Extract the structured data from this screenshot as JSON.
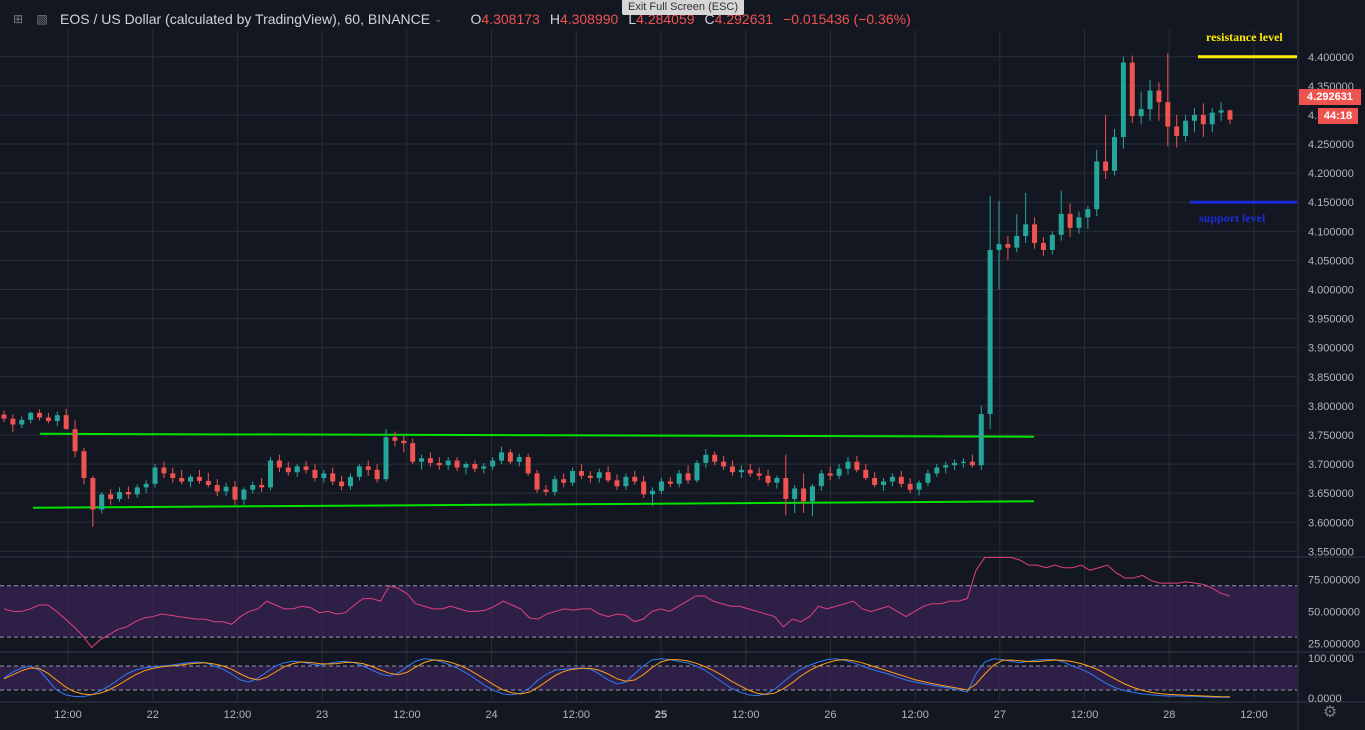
{
  "header": {
    "symbol_title": "EOS / US Dollar (calculated by TradingView), 60, BINANCE",
    "open_label": "O",
    "open_value": "4.308173",
    "high_label": "H",
    "high_value": "4.308990",
    "low_label": "L",
    "low_value": "4.284059",
    "close_label": "C",
    "close_value": "4.292631",
    "change_value": "−0.015436 (−0.36%)",
    "exit_fullscreen": "Exit Full Screen (ESC)"
  },
  "price_tags": {
    "last_price": "4.292631",
    "countdown": "44:18"
  },
  "colors": {
    "background": "#131722",
    "grid": "#2a2e39",
    "text": "#d1d4dc",
    "axis_text": "#b2b5be",
    "up": "#26a69a",
    "down": "#ef5350",
    "channel": "#00e400",
    "resistance": "#ffeb00",
    "support": "#1a2bd9",
    "rsi_line": "#e0407f",
    "rsi_band": "#3a2455",
    "stoch_k": "#3179f5",
    "stoch_d": "#ff9f1a"
  },
  "icons": {
    "fullscreen": "fullscreen-icon",
    "collapse": "collapse-icon",
    "chevron": "chevron-down-icon",
    "settings": "gear-icon"
  },
  "chart_data": {
    "type": "candlestick",
    "title": "EOS / US Dollar (calculated by TradingView), 60, BINANCE",
    "interval": "60",
    "y_ticks": [
      "4.400000",
      "4.350000",
      "4.300000",
      "4.250000",
      "4.200000",
      "4.150000",
      "4.100000",
      "4.050000",
      "4.000000",
      "3.950000",
      "3.900000",
      "3.850000",
      "3.800000",
      "3.750000",
      "3.700000",
      "3.650000",
      "3.600000",
      "3.550000"
    ],
    "ylim": [
      3.542,
      4.446
    ],
    "x_ticks": [
      "12:00",
      "22",
      "12:00",
      "23",
      "12:00",
      "24",
      "12:00",
      "25",
      "12:00",
      "26",
      "12:00",
      "27",
      "12:00",
      "28",
      "12:00"
    ],
    "x_tick_bold": [
      false,
      false,
      false,
      false,
      false,
      false,
      false,
      true,
      false,
      false,
      false,
      false,
      false,
      false,
      false
    ],
    "x_tick_index": [
      12,
      36,
      60,
      84,
      108,
      132,
      156,
      180,
      204,
      228,
      252,
      276,
      300,
      324,
      348
    ],
    "candles": [
      [
        3.785,
        3.792,
        3.772,
        3.778
      ],
      [
        3.778,
        3.785,
        3.755,
        3.768
      ],
      [
        3.768,
        3.782,
        3.762,
        3.776
      ],
      [
        3.776,
        3.79,
        3.77,
        3.788
      ],
      [
        3.788,
        3.794,
        3.775,
        3.78
      ],
      [
        3.78,
        3.788,
        3.77,
        3.774
      ],
      [
        3.774,
        3.79,
        3.765,
        3.784
      ],
      [
        3.784,
        3.795,
        3.76,
        3.76
      ],
      [
        3.76,
        3.775,
        3.712,
        3.722
      ],
      [
        3.722,
        3.728,
        3.665,
        3.676
      ],
      [
        3.676,
        3.68,
        3.592,
        3.622
      ],
      [
        3.622,
        3.652,
        3.615,
        3.648
      ],
      [
        3.648,
        3.657,
        3.63,
        3.64
      ],
      [
        3.64,
        3.66,
        3.635,
        3.652
      ],
      [
        3.652,
        3.662,
        3.64,
        3.648
      ],
      [
        3.648,
        3.665,
        3.642,
        3.66
      ],
      [
        3.66,
        3.672,
        3.65,
        3.666
      ],
      [
        3.666,
        3.7,
        3.66,
        3.694
      ],
      [
        3.694,
        3.704,
        3.676,
        3.684
      ],
      [
        3.684,
        3.694,
        3.668,
        3.676
      ],
      [
        3.676,
        3.69,
        3.665,
        3.67
      ],
      [
        3.67,
        3.682,
        3.66,
        3.678
      ],
      [
        3.678,
        3.69,
        3.666,
        3.671
      ],
      [
        3.671,
        3.685,
        3.66,
        3.664
      ],
      [
        3.664,
        3.674,
        3.645,
        3.653
      ],
      [
        3.653,
        3.668,
        3.645,
        3.661
      ],
      [
        3.661,
        3.671,
        3.63,
        3.639
      ],
      [
        3.639,
        3.66,
        3.63,
        3.656
      ],
      [
        3.656,
        3.67,
        3.65,
        3.664
      ],
      [
        3.664,
        3.676,
        3.652,
        3.66
      ],
      [
        3.66,
        3.712,
        3.655,
        3.706
      ],
      [
        3.706,
        3.716,
        3.686,
        3.694
      ],
      [
        3.694,
        3.704,
        3.68,
        3.686
      ],
      [
        3.686,
        3.7,
        3.678,
        3.696
      ],
      [
        3.696,
        3.705,
        3.684,
        3.69
      ],
      [
        3.69,
        3.7,
        3.67,
        3.676
      ],
      [
        3.676,
        3.69,
        3.668,
        3.684
      ],
      [
        3.684,
        3.694,
        3.664,
        3.67
      ],
      [
        3.67,
        3.68,
        3.655,
        3.662
      ],
      [
        3.662,
        3.684,
        3.656,
        3.678
      ],
      [
        3.678,
        3.7,
        3.672,
        3.696
      ],
      [
        3.696,
        3.706,
        3.68,
        3.69
      ],
      [
        3.69,
        3.7,
        3.668,
        3.674
      ],
      [
        3.674,
        3.76,
        3.67,
        3.746
      ],
      [
        3.746,
        3.756,
        3.73,
        3.74
      ],
      [
        3.74,
        3.75,
        3.72,
        3.736
      ],
      [
        3.736,
        3.744,
        3.7,
        3.704
      ],
      [
        3.704,
        3.716,
        3.69,
        3.71
      ],
      [
        3.71,
        3.72,
        3.696,
        3.702
      ],
      [
        3.702,
        3.712,
        3.69,
        3.698
      ],
      [
        3.698,
        3.712,
        3.69,
        3.706
      ],
      [
        3.706,
        3.712,
        3.688,
        3.694
      ],
      [
        3.694,
        3.704,
        3.682,
        3.7
      ],
      [
        3.7,
        3.706,
        3.686,
        3.692
      ],
      [
        3.692,
        3.702,
        3.684,
        3.696
      ],
      [
        3.696,
        3.712,
        3.69,
        3.706
      ],
      [
        3.706,
        3.73,
        3.7,
        3.72
      ],
      [
        3.72,
        3.726,
        3.7,
        3.704
      ],
      [
        3.704,
        3.718,
        3.696,
        3.712
      ],
      [
        3.712,
        3.718,
        3.68,
        3.684
      ],
      [
        3.684,
        3.69,
        3.65,
        3.656
      ],
      [
        3.656,
        3.664,
        3.646,
        3.652
      ],
      [
        3.652,
        3.68,
        3.646,
        3.674
      ],
      [
        3.674,
        3.684,
        3.66,
        3.668
      ],
      [
        3.668,
        3.694,
        3.662,
        3.688
      ],
      [
        3.688,
        3.7,
        3.674,
        3.68
      ],
      [
        3.68,
        3.688,
        3.668,
        3.676
      ],
      [
        3.676,
        3.692,
        3.668,
        3.686
      ],
      [
        3.686,
        3.696,
        3.668,
        3.672
      ],
      [
        3.672,
        3.682,
        3.656,
        3.662
      ],
      [
        3.662,
        3.684,
        3.656,
        3.678
      ],
      [
        3.678,
        3.688,
        3.664,
        3.67
      ],
      [
        3.67,
        3.68,
        3.642,
        3.648
      ],
      [
        3.648,
        3.66,
        3.628,
        3.654
      ],
      [
        3.654,
        3.676,
        3.648,
        3.67
      ],
      [
        3.67,
        3.678,
        3.66,
        3.666
      ],
      [
        3.666,
        3.69,
        3.66,
        3.684
      ],
      [
        3.684,
        3.698,
        3.666,
        3.672
      ],
      [
        3.672,
        3.706,
        3.668,
        3.702
      ],
      [
        3.702,
        3.726,
        3.694,
        3.716
      ],
      [
        3.716,
        3.722,
        3.698,
        3.704
      ],
      [
        3.704,
        3.714,
        3.69,
        3.696
      ],
      [
        3.696,
        3.706,
        3.68,
        3.686
      ],
      [
        3.686,
        3.698,
        3.676,
        3.69
      ],
      [
        3.69,
        3.7,
        3.678,
        3.684
      ],
      [
        3.684,
        3.694,
        3.672,
        3.68
      ],
      [
        3.68,
        3.69,
        3.662,
        3.668
      ],
      [
        3.668,
        3.68,
        3.658,
        3.676
      ],
      [
        3.676,
        3.716,
        3.612,
        3.64
      ],
      [
        3.64,
        3.664,
        3.616,
        3.658
      ],
      [
        3.658,
        3.684,
        3.616,
        3.636
      ],
      [
        3.636,
        3.666,
        3.61,
        3.662
      ],
      [
        3.662,
        3.69,
        3.654,
        3.684
      ],
      [
        3.684,
        3.696,
        3.672,
        3.68
      ],
      [
        3.68,
        3.7,
        3.674,
        3.692
      ],
      [
        3.692,
        3.712,
        3.682,
        3.704
      ],
      [
        3.704,
        3.714,
        3.686,
        3.69
      ],
      [
        3.69,
        3.7,
        3.672,
        3.676
      ],
      [
        3.676,
        3.686,
        3.66,
        3.664
      ],
      [
        3.664,
        3.676,
        3.654,
        3.67
      ],
      [
        3.67,
        3.684,
        3.662,
        3.678
      ],
      [
        3.678,
        3.688,
        3.66,
        3.666
      ],
      [
        3.666,
        3.676,
        3.65,
        3.656
      ],
      [
        3.656,
        3.672,
        3.646,
        3.668
      ],
      [
        3.668,
        3.69,
        3.662,
        3.684
      ],
      [
        3.684,
        3.7,
        3.678,
        3.694
      ],
      [
        3.694,
        3.704,
        3.684,
        3.698
      ],
      [
        3.698,
        3.708,
        3.69,
        3.702
      ],
      [
        3.702,
        3.71,
        3.694,
        3.704
      ],
      [
        3.704,
        3.716,
        3.694,
        3.698
      ],
      [
        3.698,
        3.8,
        3.69,
        3.786
      ],
      [
        3.786,
        4.16,
        3.76,
        4.068
      ],
      [
        4.068,
        4.152,
        4.0,
        4.078
      ],
      [
        4.078,
        4.092,
        4.05,
        4.072
      ],
      [
        4.072,
        4.13,
        4.064,
        4.092
      ],
      [
        4.092,
        4.166,
        4.08,
        4.112
      ],
      [
        4.112,
        4.124,
        4.07,
        4.08
      ],
      [
        4.08,
        4.09,
        4.058,
        4.068
      ],
      [
        4.068,
        4.1,
        4.06,
        4.094
      ],
      [
        4.094,
        4.17,
        4.084,
        4.13
      ],
      [
        4.13,
        4.148,
        4.09,
        4.106
      ],
      [
        4.106,
        4.134,
        4.096,
        4.124
      ],
      [
        4.124,
        4.144,
        4.104,
        4.138
      ],
      [
        4.138,
        4.24,
        4.126,
        4.22
      ],
      [
        4.22,
        4.3,
        4.19,
        4.204
      ],
      [
        4.204,
        4.276,
        4.196,
        4.262
      ],
      [
        4.262,
        4.4,
        4.242,
        4.39
      ],
      [
        4.39,
        4.402,
        4.286,
        4.298
      ],
      [
        4.298,
        4.34,
        4.284,
        4.31
      ],
      [
        4.31,
        4.36,
        4.29,
        4.342
      ],
      [
        4.342,
        4.356,
        4.29,
        4.322
      ],
      [
        4.322,
        4.406,
        4.246,
        4.28
      ],
      [
        4.28,
        4.3,
        4.244,
        4.264
      ],
      [
        4.264,
        4.3,
        4.254,
        4.29
      ],
      [
        4.29,
        4.312,
        4.27,
        4.3
      ],
      [
        4.3,
        4.32,
        4.262,
        4.284
      ],
      [
        4.284,
        4.312,
        4.27,
        4.304
      ],
      [
        4.304,
        4.322,
        4.29,
        4.308
      ],
      [
        4.308,
        4.309,
        4.284,
        4.292
      ]
    ],
    "candle_x_start": 4,
    "candle_x_end": 1230,
    "annotations": {
      "resistance_label": "resistance level",
      "resistance_level": 4.4,
      "support_label": "support level",
      "support_level": 4.15,
      "channel_upper": [
        [
          3.752,
          3.747
        ]
      ],
      "channel_lower": [
        [
          3.625,
          3.636
        ]
      ]
    },
    "rsi": {
      "y_ticks": [
        "75.000000",
        "50.000000",
        "25.000000"
      ],
      "ylim": [
        20,
        90
      ],
      "band": [
        30,
        70
      ],
      "values": [
        52,
        50,
        50,
        52,
        55,
        55,
        50,
        44,
        38,
        31,
        22,
        28,
        32,
        36,
        38,
        42,
        45,
        46,
        48,
        47,
        46,
        45,
        44,
        44,
        42,
        42,
        40,
        46,
        50,
        52,
        58,
        55,
        52,
        52,
        54,
        53,
        49,
        50,
        48,
        49,
        55,
        60,
        60,
        58,
        70,
        68,
        64,
        56,
        54,
        52,
        52,
        54,
        52,
        50,
        50,
        51,
        54,
        58,
        55,
        52,
        45,
        44,
        48,
        50,
        52,
        51,
        52,
        52,
        48,
        46,
        48,
        47,
        42,
        44,
        50,
        52,
        50,
        54,
        58,
        62,
        62,
        58,
        56,
        54,
        54,
        52,
        50,
        48,
        46,
        38,
        44,
        42,
        46,
        54,
        52,
        54,
        56,
        58,
        52,
        50,
        52,
        54,
        50,
        46,
        50,
        54,
        56,
        56,
        58,
        58,
        60,
        82,
        92,
        92,
        92,
        92,
        90,
        86,
        86,
        84,
        86,
        84,
        84,
        86,
        82,
        84,
        86,
        80,
        76,
        76,
        78,
        74,
        72,
        72,
        72,
        73,
        72,
        71,
        68,
        64,
        62
      ]
    },
    "stoch": {
      "y_ticks": [
        "100.0000",
        "0.0000"
      ],
      "ylim": [
        -5,
        110
      ],
      "band": [
        20,
        80
      ],
      "k": [
        50,
        65,
        75,
        80,
        70,
        45,
        20,
        8,
        4,
        3,
        8,
        18,
        30,
        45,
        60,
        70,
        75,
        78,
        80,
        82,
        85,
        88,
        90,
        88,
        80,
        72,
        60,
        45,
        40,
        50,
        65,
        80,
        88,
        92,
        90,
        85,
        82,
        86,
        90,
        92,
        88,
        80,
        70,
        60,
        55,
        62,
        78,
        92,
        98,
        96,
        90,
        82,
        72,
        60,
        45,
        30,
        18,
        10,
        8,
        12,
        25,
        45,
        60,
        70,
        72,
        74,
        75,
        72,
        60,
        45,
        35,
        40,
        60,
        80,
        95,
        98,
        96,
        92,
        88,
        80,
        70,
        55,
        40,
        25,
        15,
        8,
        6,
        10,
        22,
        40,
        58,
        72,
        82,
        90,
        96,
        98,
        94,
        88,
        80,
        72,
        66,
        60,
        52,
        45,
        40,
        36,
        32,
        28,
        25,
        20,
        15,
        60,
        90,
        98,
        96,
        92,
        88,
        92,
        95,
        96,
        96,
        90,
        80,
        72,
        62,
        48,
        35,
        25,
        18,
        14,
        10,
        8,
        6,
        5,
        5,
        4,
        4,
        3,
        2,
        2,
        2
      ],
      "d": [
        48,
        58,
        68,
        75,
        74,
        62,
        45,
        28,
        16,
        10,
        8,
        12,
        20,
        32,
        45,
        58,
        68,
        74,
        78,
        80,
        82,
        85,
        87,
        88,
        85,
        80,
        72,
        60,
        50,
        45,
        52,
        65,
        78,
        86,
        90,
        89,
        86,
        85,
        86,
        89,
        89,
        86,
        79,
        70,
        62,
        58,
        64,
        77,
        89,
        95,
        94,
        89,
        82,
        72,
        59,
        46,
        32,
        20,
        13,
        10,
        15,
        27,
        42,
        57,
        67,
        72,
        74,
        74,
        69,
        60,
        48,
        42,
        45,
        58,
        76,
        90,
        96,
        96,
        93,
        87,
        79,
        69,
        57,
        43,
        31,
        20,
        12,
        9,
        12,
        23,
        38,
        55,
        69,
        80,
        88,
        94,
        96,
        93,
        88,
        81,
        74,
        67,
        60,
        53,
        46,
        41,
        36,
        32,
        28,
        24,
        20,
        35,
        60,
        82,
        94,
        95,
        93,
        91,
        91,
        93,
        95,
        94,
        91,
        86,
        79,
        70,
        58,
        46,
        35,
        26,
        19,
        14,
        11,
        9,
        8,
        7,
        6,
        5,
        4,
        3,
        3
      ]
    }
  }
}
